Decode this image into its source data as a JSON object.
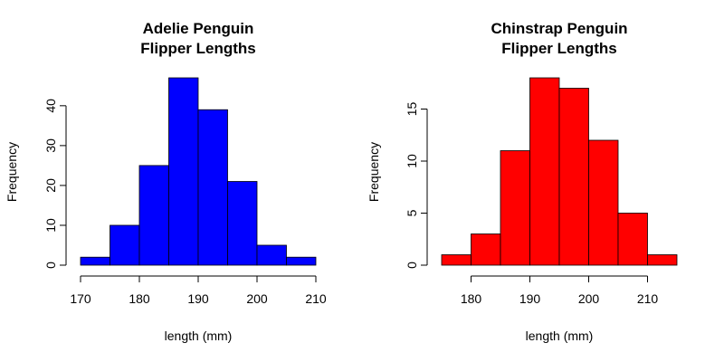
{
  "chart_data": [
    {
      "type": "bar",
      "title": [
        "Adelie Penguin",
        "Flipper Lengths"
      ],
      "xlabel": "length (mm)",
      "ylabel": "Frequency",
      "bin_edges": [
        170,
        175,
        180,
        185,
        190,
        195,
        200,
        205,
        210
      ],
      "values": [
        2,
        10,
        25,
        47,
        39,
        21,
        5,
        2
      ],
      "color": "#0000ff",
      "xticks": [
        170,
        180,
        190,
        200,
        210
      ],
      "yticks": [
        0,
        10,
        20,
        30,
        40
      ],
      "xlim": [
        170,
        210
      ],
      "ylim": [
        0,
        47
      ],
      "grid": false
    },
    {
      "type": "bar",
      "title": [
        "Chinstrap Penguin",
        "Flipper Lengths"
      ],
      "xlabel": "length (mm)",
      "ylabel": "Frequency",
      "bin_edges": [
        175,
        180,
        185,
        190,
        195,
        200,
        205,
        210,
        215
      ],
      "values": [
        1,
        3,
        11,
        18,
        17,
        12,
        5,
        1
      ],
      "color": "#ff0000",
      "xticks": [
        180,
        190,
        200,
        210
      ],
      "yticks": [
        0,
        5,
        10,
        15
      ],
      "xlim": [
        175,
        215
      ],
      "ylim": [
        0,
        18
      ],
      "grid": false
    }
  ]
}
